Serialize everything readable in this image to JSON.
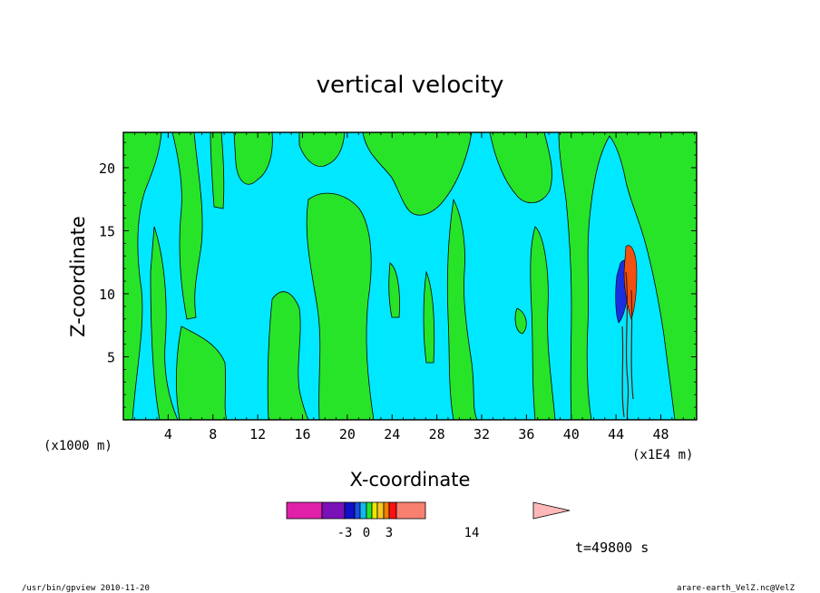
{
  "chart_data": {
    "type": "heatmap",
    "title": "vertical velocity",
    "xlabel": "X-coordinate",
    "ylabel": "Z-coordinate",
    "x_unit_left": "(x1000 m)",
    "x_unit_right": "(x1E4 m)",
    "xlim": [
      0,
      51.2
    ],
    "ylim": [
      0,
      22.8
    ],
    "x_ticks": [
      "4",
      "8",
      "12",
      "16",
      "20",
      "24",
      "28",
      "32",
      "36",
      "40",
      "44",
      "48"
    ],
    "x_tick_values": [
      4,
      8,
      12,
      16,
      20,
      24,
      28,
      32,
      36,
      40,
      44,
      48
    ],
    "y_ticks": [
      "5",
      "10",
      "15",
      "20"
    ],
    "y_tick_values": [
      5,
      10,
      15,
      20
    ],
    "grid": false,
    "colorbar": {
      "levels": [
        -14,
        -6,
        -3,
        -2,
        -1,
        0,
        1,
        2,
        3,
        6,
        14,
        30
      ],
      "colors": [
        "#e020a8",
        "#7a10b8",
        "#1010c8",
        "#1a50e8",
        "#10b8f0",
        "#28e428",
        "#e8e800",
        "#f8c820",
        "#f08000",
        "#ff1010",
        "#f88070",
        "#ffb8b8"
      ],
      "labels": [
        "-3",
        "0",
        "3",
        "14"
      ],
      "label_values": [
        -3,
        0,
        3,
        14
      ]
    },
    "fields": {
      "background": "#00e8ff",
      "positive": "#28e428",
      "strong_positive": "#f05010",
      "strong_negative": "#1a30e0"
    },
    "time_label": "t=49800 s"
  },
  "footer": {
    "left": "/usr/bin/gpview   2010-11-20",
    "right": "arare-earth_VelZ.nc@VelZ"
  }
}
